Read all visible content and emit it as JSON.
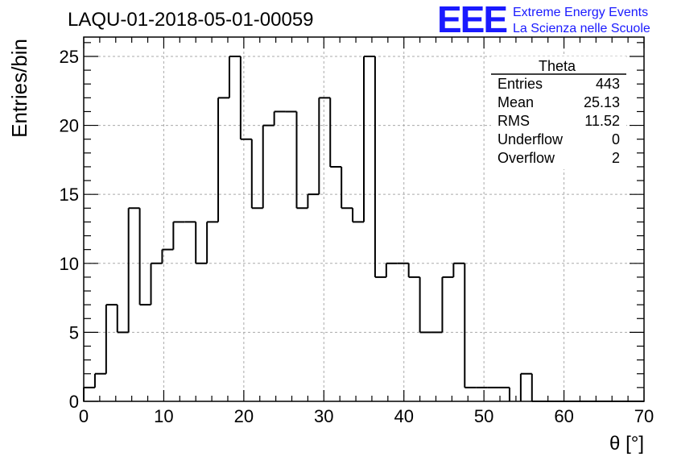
{
  "chart_data": {
    "type": "bar",
    "style": "step-histogram",
    "title": "LAQU-01-2018-05-01-00059",
    "xlabel": "θ [°]",
    "ylabel": "Entries/bin",
    "xlim": [
      0,
      70
    ],
    "ylim": [
      0,
      26.4
    ],
    "grid": true,
    "x_ticks": [
      0,
      10,
      20,
      30,
      40,
      50,
      60,
      70
    ],
    "y_ticks": [
      0,
      5,
      10,
      15,
      20,
      25
    ],
    "bin_width": 1.4,
    "bin_edges_start": 0,
    "values": [
      1,
      2,
      7,
      5,
      14,
      7,
      10,
      11,
      13,
      13,
      10,
      13,
      22,
      25,
      19,
      14,
      20,
      21,
      21,
      14,
      15,
      22,
      17,
      14,
      13,
      25,
      9,
      10,
      10,
      9,
      5,
      5,
      9,
      10,
      1,
      1,
      1,
      1,
      0,
      2,
      0,
      0,
      0,
      0,
      0,
      0,
      0,
      0,
      0,
      0
    ],
    "stats_box": {
      "title": "Theta",
      "rows": [
        {
          "label": "Entries",
          "value": "443"
        },
        {
          "label": "Mean",
          "value": "25.13"
        },
        {
          "label": "RMS",
          "value": "11.52"
        },
        {
          "label": "Underflow",
          "value": "0"
        },
        {
          "label": "Overflow",
          "value": "2"
        }
      ]
    },
    "logo": {
      "mark": "EEE",
      "line1": "Extreme Energy Events",
      "line2": "La Scienza nelle Scuole",
      "color": "#1a1aff"
    },
    "line_color": "#000000",
    "grid_color": "#aaaaaa"
  }
}
